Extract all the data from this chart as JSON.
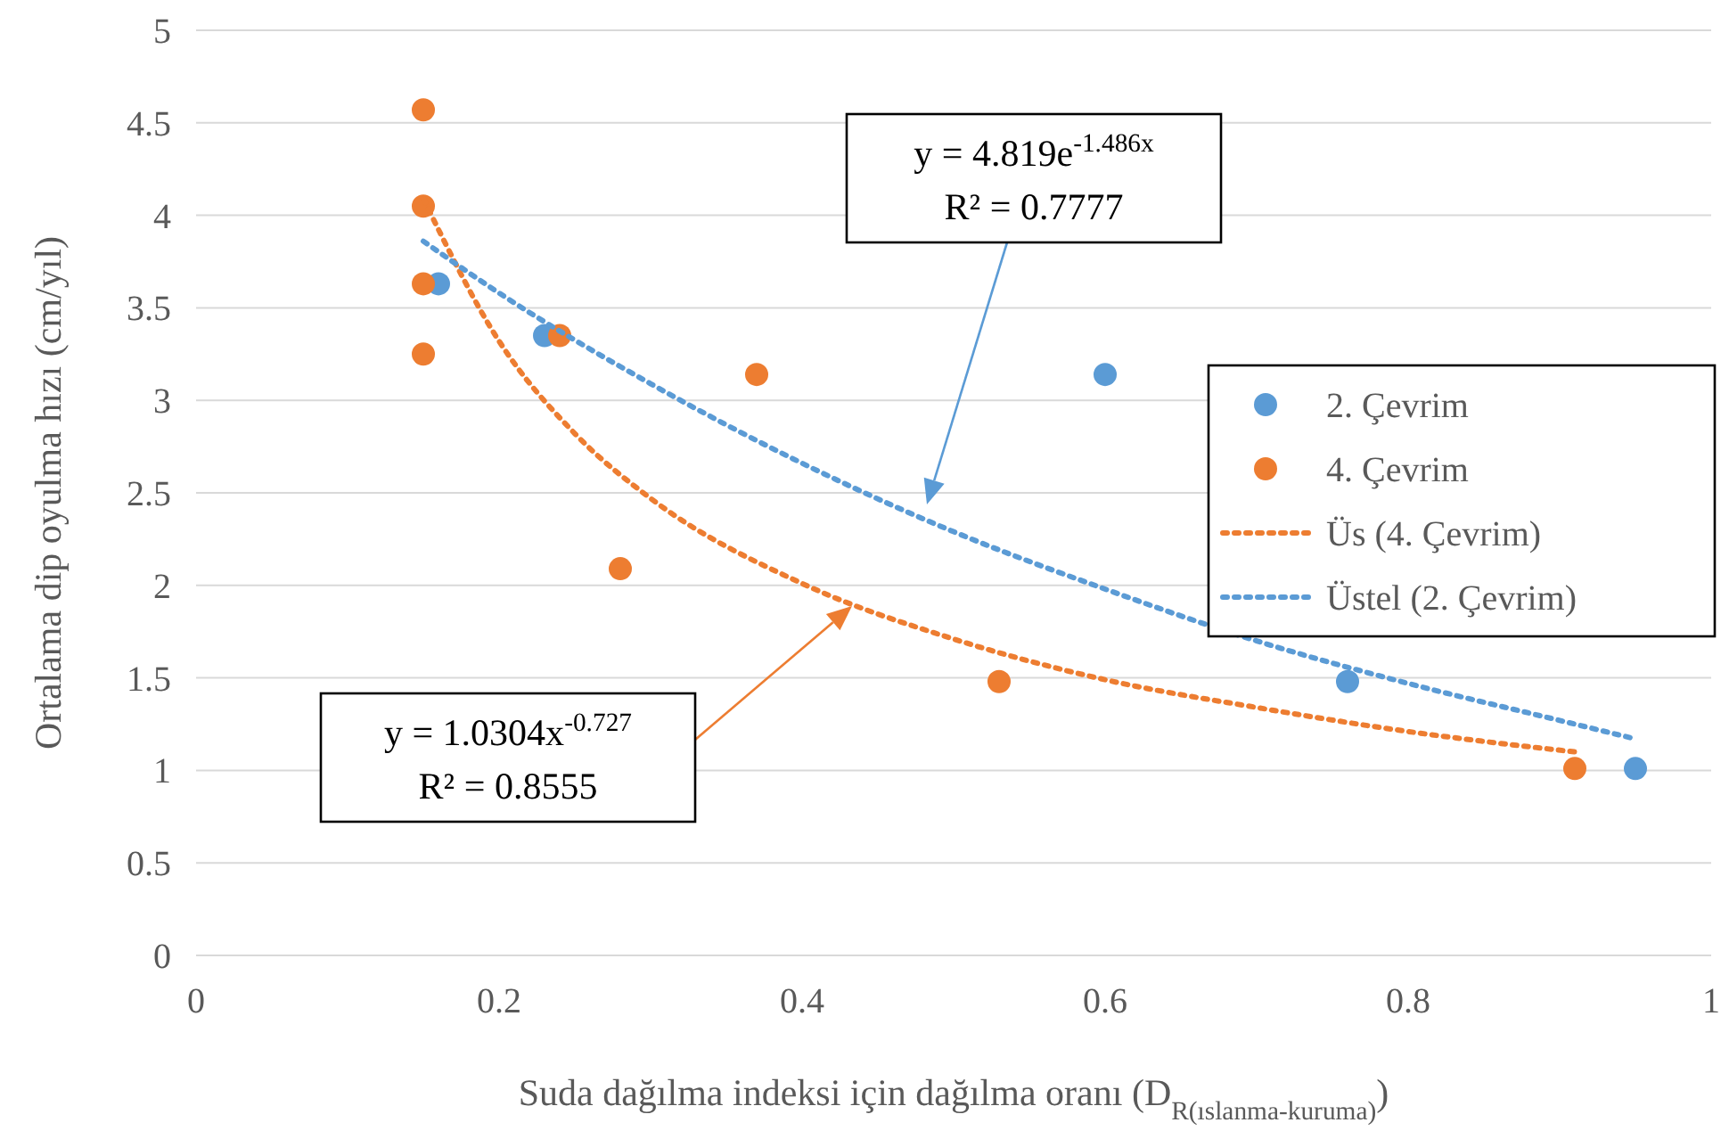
{
  "chart_data": {
    "type": "scatter",
    "xlabel": "Suda dağılma indeksi için dağılma oranı (D$_{R(ıslanma-kuruma)}$)",
    "ylabel": "Ortalama dip oyulma hızı (cm/yıl)",
    "xlim": [
      0,
      1
    ],
    "xticks": [
      0,
      0.2,
      0.4,
      0.6,
      0.8,
      1
    ],
    "ylim": [
      0,
      5
    ],
    "yticks": [
      0,
      0.5,
      1,
      1.5,
      2,
      2.5,
      3,
      3.5,
      4,
      4.5,
      5
    ],
    "grid": "y",
    "legend": "right",
    "marker": "circle",
    "series": [
      {
        "name": "2. Çevrim",
        "color": "#5b9bd5",
        "x": [
          0.16,
          0.23,
          0.6,
          0.76,
          0.95
        ],
        "values": [
          3.63,
          3.35,
          3.14,
          1.48,
          1.01
        ]
      },
      {
        "name": "4. Çevrim",
        "color": "#ed7d31",
        "x": [
          0.15,
          0.15,
          0.15,
          0.15,
          0.24,
          0.28,
          0.37,
          0.53,
          0.91
        ],
        "values": [
          4.57,
          4.05,
          3.63,
          3.25,
          3.35,
          2.09,
          3.14,
          1.48,
          1.01
        ]
      },
      {
        "name": "Üs (4. Çevrim)",
        "type": "line",
        "line_style": "dotted",
        "marker": "none",
        "color": "#ed7d31",
        "x": [
          0.15,
          0.2,
          0.25,
          0.3,
          0.4,
          0.5,
          0.6,
          0.7,
          0.8,
          0.91
        ],
        "values": [
          4.09,
          3.32,
          2.82,
          2.47,
          2.01,
          1.71,
          1.49,
          1.34,
          1.21,
          1.1
        ]
      },
      {
        "name": "Üstel (2. Çevrim)",
        "type": "line",
        "line_style": "dotted",
        "marker": "none",
        "color": "#5b9bd5",
        "x": [
          0.15,
          0.2,
          0.3,
          0.4,
          0.5,
          0.6,
          0.7,
          0.8,
          0.9,
          0.95
        ],
        "values": [
          3.86,
          3.58,
          3.09,
          2.66,
          2.29,
          1.98,
          1.7,
          1.47,
          1.27,
          1.17
        ]
      }
    ],
    "annotations": [
      "y = 4.819e$^{-1.486x}$\nR² = 0.7777",
      "y = 1.0304x$^{-0.727}$\nR² = 0.8555"
    ]
  }
}
